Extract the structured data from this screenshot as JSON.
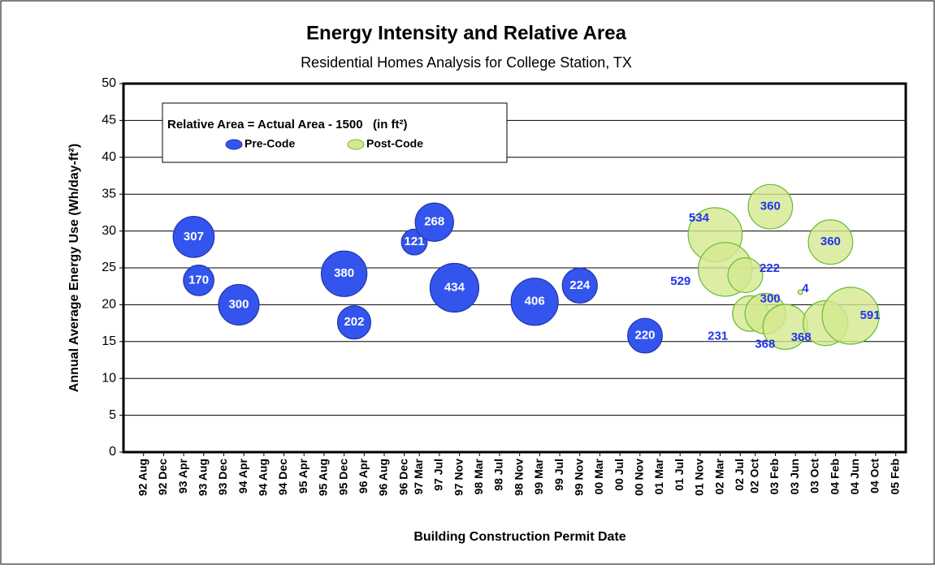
{
  "chart_data": {
    "type": "bubble",
    "title": "Energy Intensity and Relative Area",
    "subtitle": "Residential Homes Analysis for College Station, TX",
    "x_label": "Building Construction Permit Date",
    "y_label": "Annual Average Energy Use (Wh/day-ft²)",
    "legend_title": "Relative Area = Actual Area - 1500   (in ft²)",
    "legend_position": "upper left",
    "grid": true,
    "ylim": [
      0,
      50
    ],
    "yticks": [
      0,
      5,
      10,
      15,
      20,
      25,
      30,
      35,
      40,
      45,
      50
    ],
    "xlim": [
      "1992-04",
      "2005-04"
    ],
    "xticks": [
      {
        "value": "1992-08",
        "label": "92 Aug"
      },
      {
        "value": "1992-12",
        "label": "92 Dec"
      },
      {
        "value": "1993-04",
        "label": "93 Apr"
      },
      {
        "value": "1993-08",
        "label": "93 Aug"
      },
      {
        "value": "1993-12",
        "label": "93 Dec"
      },
      {
        "value": "1994-04",
        "label": "94 Apr"
      },
      {
        "value": "1994-08",
        "label": "94 Aug"
      },
      {
        "value": "1994-12",
        "label": "94 Dec"
      },
      {
        "value": "1995-04",
        "label": "95 Apr"
      },
      {
        "value": "1995-08",
        "label": "95 Aug"
      },
      {
        "value": "1995-12",
        "label": "95 Dec"
      },
      {
        "value": "1996-04",
        "label": "96 Apr"
      },
      {
        "value": "1996-08",
        "label": "96 Aug"
      },
      {
        "value": "1996-12",
        "label": "96 Dec"
      },
      {
        "value": "1997-03",
        "label": "97 Mar"
      },
      {
        "value": "1997-07",
        "label": "97 Jul"
      },
      {
        "value": "1997-11",
        "label": "97 Nov"
      },
      {
        "value": "1998-03",
        "label": "98 Mar"
      },
      {
        "value": "1998-07",
        "label": "98 Jul"
      },
      {
        "value": "1998-11",
        "label": "98 Nov"
      },
      {
        "value": "1999-03",
        "label": "99 Mar"
      },
      {
        "value": "1999-07",
        "label": "99 Jul"
      },
      {
        "value": "1999-11",
        "label": "99 Nov"
      },
      {
        "value": "2000-03",
        "label": "00 Mar"
      },
      {
        "value": "2000-07",
        "label": "00 Jul"
      },
      {
        "value": "2000-11",
        "label": "00 Nov"
      },
      {
        "value": "2001-03",
        "label": "01 Mar"
      },
      {
        "value": "2001-07",
        "label": "01 Jul"
      },
      {
        "value": "2001-11",
        "label": "01 Nov"
      },
      {
        "value": "2002-03",
        "label": "02 Mar"
      },
      {
        "value": "2002-07",
        "label": "02 Jul"
      },
      {
        "value": "2002-10",
        "label": "02 Oct"
      },
      {
        "value": "2003-02",
        "label": "03 Feb"
      },
      {
        "value": "2003-06",
        "label": "03 Jun"
      },
      {
        "value": "2003-10",
        "label": "03 Oct"
      },
      {
        "value": "2004-02",
        "label": "04 Feb"
      },
      {
        "value": "2004-06",
        "label": "04 Jun"
      },
      {
        "value": "2004-10",
        "label": "04 Oct"
      },
      {
        "value": "2005-02",
        "label": "05 Feb"
      }
    ],
    "series": [
      {
        "name": "Pre-Code",
        "color": "#3355ee",
        "edge": "#2233aa",
        "x": [
          "1993-06",
          "1993-07",
          "1994-03",
          "1995-12",
          "1996-02",
          "1997-02",
          "1997-06",
          "1997-10",
          "1999-02",
          "1999-11",
          "2000-12"
        ],
        "values": [
          29.2,
          23.3,
          20.0,
          24.2,
          17.6,
          28.5,
          31.2,
          22.3,
          20.4,
          22.6,
          15.8
        ],
        "sizes": [
          307,
          170,
          300,
          380,
          202,
          121,
          268,
          434,
          406,
          224,
          220
        ]
      },
      {
        "name": "Post-Code",
        "color": "#d4e890",
        "edge": "#66bb33",
        "x": [
          "2002-02",
          "2002-04",
          "2002-08",
          "2002-09",
          "2002-12",
          "2003-01",
          "2003-04",
          "2003-07",
          "2004-01",
          "2003-12",
          "2004-05"
        ],
        "values": [
          29.5,
          24.8,
          24.0,
          18.8,
          18.8,
          33.3,
          17.0,
          21.7,
          28.5,
          17.5,
          18.5
        ],
        "sizes": [
          534,
          529,
          222,
          231,
          300,
          360,
          368,
          4,
          360,
          368,
          591
        ]
      }
    ]
  }
}
